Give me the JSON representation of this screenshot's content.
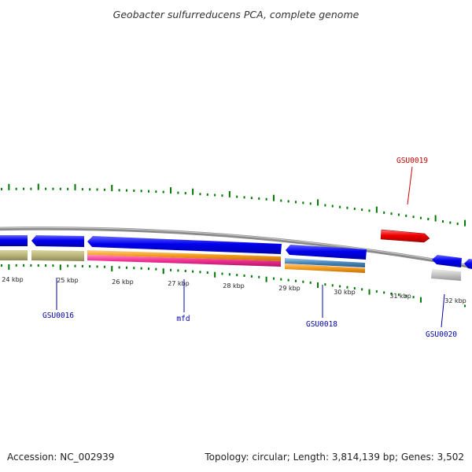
{
  "title": "Geobacter sulfurreducens PCA, complete genome",
  "footer": {
    "accession": "Accession: NC_002939",
    "summary": "Topology: circular; Length: 3,814,139 bp; Genes: 3,502"
  },
  "colors": {
    "forward_gene": "#0000ff",
    "highlighted_gene": "#ff0000",
    "backbone": "#888888",
    "gc_ticks": "#007700",
    "rna_tan": "#b8b47a",
    "orange_feature": "#f39a1a",
    "pink_feature": "#ef2f8f",
    "steelblue_feature": "#4a86b8",
    "grey_feature": "#bbbbbb"
  },
  "scale": {
    "unit": "kbp",
    "ticks": [
      "24 kbp",
      "25 kbp",
      "26 kbp",
      "27 kbp",
      "28 kbp",
      "29 kbp",
      "30 kbp",
      "31 kbp",
      "32 kbp"
    ]
  },
  "genes": [
    {
      "label": "GSU0016",
      "color": "#0000aa"
    },
    {
      "label": "mfd",
      "color": "#0000aa"
    },
    {
      "label": "GSU0018",
      "color": "#0000aa"
    },
    {
      "label": "GSU0019",
      "color": "#cc0000"
    },
    {
      "label": "GSU0020",
      "color": "#0000aa"
    }
  ]
}
